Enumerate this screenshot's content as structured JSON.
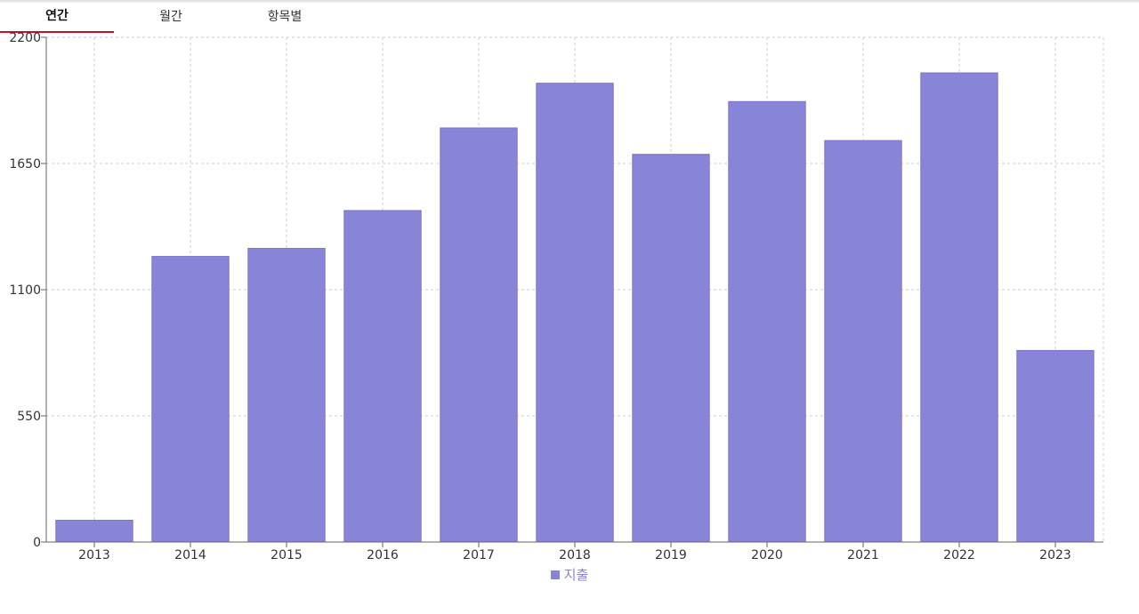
{
  "tabs": [
    {
      "label": "연간",
      "active": true
    },
    {
      "label": "월간",
      "active": false
    },
    {
      "label": "항목별",
      "active": false
    }
  ],
  "colors": {
    "bar": "#8884d8",
    "bar_stroke": "#7a76c9",
    "grid": "#cccccc",
    "axis": "#666666",
    "tab_indicator": "#c8102e"
  },
  "chart_data": {
    "type": "bar",
    "categories": [
      "2013",
      "2014",
      "2015",
      "2016",
      "2017",
      "2018",
      "2019",
      "2020",
      "2021",
      "2022",
      "2023"
    ],
    "series": [
      {
        "name": "지출",
        "values": [
          95,
          1245,
          1280,
          1445,
          1805,
          2000,
          1690,
          1920,
          1750,
          2045,
          835
        ]
      }
    ],
    "yticks": [
      0,
      550,
      1100,
      1650,
      2200
    ],
    "ylim": [
      0,
      2200
    ],
    "grid": true,
    "legend_position": "bottom-center"
  }
}
